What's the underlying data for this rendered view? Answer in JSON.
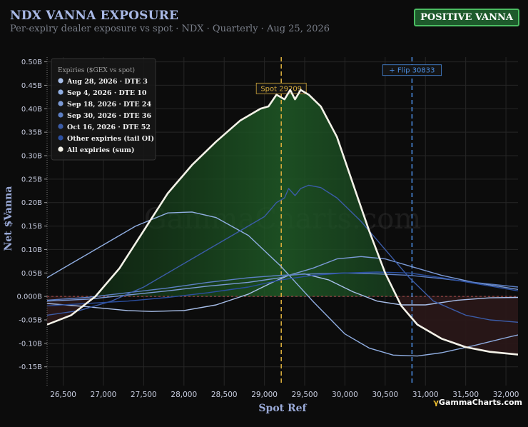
{
  "header": {
    "title": "NDX VANNA EXPOSURE",
    "subtitle": "Per-expiry dealer exposure vs spot · NDX · Quarterly · Aug 25, 2026",
    "badge": "POSITIVE VANNA"
  },
  "brand": {
    "prefix": "γ",
    "name": "GammaCharts.com"
  },
  "watermark": "GammaCharts.com",
  "colors": {
    "background": "#0c0c0c",
    "positive_fill": "#1e4a22",
    "negative_fill": "#2a1718",
    "spot_line": "#d4a93a",
    "flip_line": "#4a8ce0",
    "total_line": "#f4f2e8"
  },
  "chart_data": {
    "type": "line",
    "title": "NDX VANNA EXPOSURE",
    "xlabel": "Spot Ref",
    "ylabel": "Net $Vanna",
    "xlim": [
      26300,
      32150
    ],
    "ylim": [
      -0.19,
      0.51
    ],
    "x_ticks": [
      26500,
      27000,
      27500,
      28000,
      28500,
      29000,
      29500,
      30000,
      30500,
      31000,
      31500,
      32000
    ],
    "x_tick_labels": [
      "26,500",
      "27,000",
      "27,500",
      "28,000",
      "28,500",
      "29,000",
      "29,500",
      "30,000",
      "30,500",
      "31,000",
      "31,500",
      "32,000"
    ],
    "y_ticks": [
      -0.15,
      -0.1,
      -0.05,
      0.0,
      0.05,
      0.1,
      0.15,
      0.2,
      0.25,
      0.3,
      0.35,
      0.4,
      0.45,
      0.5
    ],
    "y_tick_labels": [
      "-0.15B",
      "-0.10B",
      "-0.05B",
      "0.000B",
      "0.05B",
      "0.10B",
      "0.15B",
      "0.20B",
      "0.25B",
      "0.30B",
      "0.35B",
      "0.40B",
      "0.45B",
      "0.50B"
    ],
    "grid": true,
    "legend_title": "Expiries ($GEX vs spot)",
    "legend_position": "top-left",
    "annotations": {
      "spot": {
        "label": "Spot 29209",
        "x": 29209
      },
      "flip": {
        "label": "+ Flip 30833",
        "x": 30833
      }
    },
    "series": [
      {
        "name": "Aug 28, 2026 · DTE 3",
        "color": "#a8bfea",
        "points": [
          [
            26300,
            -0.015
          ],
          [
            26800,
            -0.022
          ],
          [
            27300,
            -0.03
          ],
          [
            27600,
            -0.032
          ],
          [
            28000,
            -0.03
          ],
          [
            28400,
            -0.018
          ],
          [
            28800,
            0.005
          ],
          [
            29100,
            0.03
          ],
          [
            29300,
            0.045
          ],
          [
            29500,
            0.048
          ],
          [
            29800,
            0.035
          ],
          [
            30100,
            0.01
          ],
          [
            30400,
            -0.01
          ],
          [
            30700,
            -0.018
          ],
          [
            31000,
            -0.018
          ],
          [
            31400,
            -0.008
          ],
          [
            31800,
            -0.003
          ],
          [
            32150,
            -0.002
          ]
        ]
      },
      {
        "name": "Sep 4, 2026 · DTE 10",
        "color": "#90aee2",
        "points": [
          [
            26300,
            0.04
          ],
          [
            26600,
            0.07
          ],
          [
            27000,
            0.11
          ],
          [
            27400,
            0.15
          ],
          [
            27800,
            0.178
          ],
          [
            28100,
            0.18
          ],
          [
            28400,
            0.168
          ],
          [
            28800,
            0.13
          ],
          [
            29200,
            0.065
          ],
          [
            29600,
            -0.01
          ],
          [
            30000,
            -0.08
          ],
          [
            30300,
            -0.11
          ],
          [
            30600,
            -0.125
          ],
          [
            30900,
            -0.127
          ],
          [
            31200,
            -0.12
          ],
          [
            31600,
            -0.105
          ],
          [
            32000,
            -0.088
          ],
          [
            32150,
            -0.082
          ]
        ]
      },
      {
        "name": "Sep 18, 2026 · DTE 24",
        "color": "#7b9ad6",
        "points": [
          [
            26300,
            -0.01
          ],
          [
            26800,
            -0.006
          ],
          [
            27300,
            0.003
          ],
          [
            27800,
            0.012
          ],
          [
            28300,
            0.022
          ],
          [
            28800,
            0.03
          ],
          [
            29200,
            0.04
          ],
          [
            29600,
            0.06
          ],
          [
            29900,
            0.08
          ],
          [
            30200,
            0.085
          ],
          [
            30500,
            0.08
          ],
          [
            30800,
            0.065
          ],
          [
            31200,
            0.045
          ],
          [
            31600,
            0.03
          ],
          [
            32150,
            0.015
          ]
        ]
      },
      {
        "name": "Sep 30, 2026 · DTE 36",
        "color": "#5c7fc4",
        "points": [
          [
            26300,
            -0.008
          ],
          [
            26800,
            -0.002
          ],
          [
            27300,
            0.008
          ],
          [
            27800,
            0.018
          ],
          [
            28300,
            0.03
          ],
          [
            28800,
            0.04
          ],
          [
            29200,
            0.045
          ],
          [
            29600,
            0.048
          ],
          [
            30000,
            0.05
          ],
          [
            30400,
            0.048
          ],
          [
            30800,
            0.045
          ],
          [
            31200,
            0.038
          ],
          [
            31600,
            0.03
          ],
          [
            32150,
            0.02
          ]
        ]
      },
      {
        "name": "Oct 16, 2026 · DTE 52",
        "color": "#3b5ca8",
        "points": [
          [
            26300,
            -0.04
          ],
          [
            26700,
            -0.03
          ],
          [
            27100,
            -0.01
          ],
          [
            27500,
            0.02
          ],
          [
            27900,
            0.06
          ],
          [
            28300,
            0.1
          ],
          [
            28700,
            0.14
          ],
          [
            29000,
            0.17
          ],
          [
            29100,
            0.19
          ],
          [
            29150,
            0.2
          ],
          [
            29250,
            0.21
          ],
          [
            29300,
            0.23
          ],
          [
            29380,
            0.215
          ],
          [
            29450,
            0.23
          ],
          [
            29550,
            0.237
          ],
          [
            29700,
            0.232
          ],
          [
            29900,
            0.21
          ],
          [
            30200,
            0.16
          ],
          [
            30500,
            0.1
          ],
          [
            30800,
            0.04
          ],
          [
            31100,
            -0.01
          ],
          [
            31500,
            -0.04
          ],
          [
            31800,
            -0.05
          ],
          [
            32150,
            -0.055
          ]
        ]
      },
      {
        "name": "Other expiries (tail OI)",
        "color": "#2b4fa0",
        "points": [
          [
            26300,
            -0.02
          ],
          [
            26800,
            -0.015
          ],
          [
            27300,
            -0.01
          ],
          [
            27800,
            -0.002
          ],
          [
            28300,
            0.008
          ],
          [
            28800,
            0.02
          ],
          [
            29200,
            0.035
          ],
          [
            29600,
            0.045
          ],
          [
            30000,
            0.05
          ],
          [
            30400,
            0.052
          ],
          [
            30800,
            0.05
          ],
          [
            31200,
            0.04
          ],
          [
            31600,
            0.028
          ],
          [
            32150,
            0.012
          ]
        ]
      },
      {
        "name": "All expiries (sum)",
        "color": "#f4f2e8",
        "width": 2.6,
        "points": [
          [
            26300,
            -0.06
          ],
          [
            26600,
            -0.04
          ],
          [
            26900,
            0.0
          ],
          [
            27200,
            0.06
          ],
          [
            27500,
            0.14
          ],
          [
            27800,
            0.22
          ],
          [
            28100,
            0.28
          ],
          [
            28400,
            0.33
          ],
          [
            28700,
            0.375
          ],
          [
            28950,
            0.4
          ],
          [
            29050,
            0.405
          ],
          [
            29150,
            0.43
          ],
          [
            29250,
            0.42
          ],
          [
            29320,
            0.44
          ],
          [
            29380,
            0.42
          ],
          [
            29450,
            0.44
          ],
          [
            29550,
            0.43
          ],
          [
            29700,
            0.405
          ],
          [
            29900,
            0.34
          ],
          [
            30100,
            0.24
          ],
          [
            30300,
            0.14
          ],
          [
            30500,
            0.05
          ],
          [
            30700,
            -0.02
          ],
          [
            30900,
            -0.06
          ],
          [
            31200,
            -0.09
          ],
          [
            31500,
            -0.108
          ],
          [
            31800,
            -0.118
          ],
          [
            32150,
            -0.124
          ]
        ]
      }
    ]
  }
}
